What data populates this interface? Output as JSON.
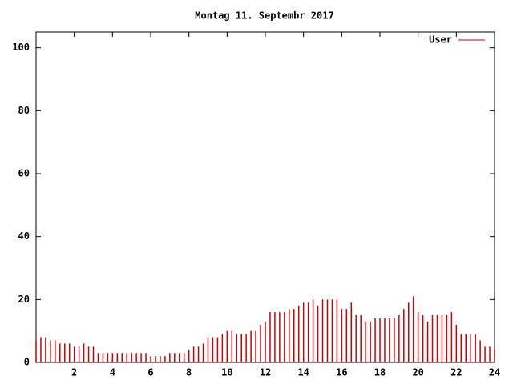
{
  "chart_data": {
    "type": "impulse",
    "title": "Montag 11. Septembr 2017",
    "x": [
      0,
      0.25,
      0.5,
      0.75,
      1,
      1.25,
      1.5,
      1.75,
      2,
      2.25,
      2.5,
      2.75,
      3,
      3.25,
      3.5,
      3.75,
      4,
      4.25,
      4.5,
      4.75,
      5,
      5.25,
      5.5,
      5.75,
      6,
      6.25,
      6.5,
      6.75,
      7,
      7.25,
      7.5,
      7.75,
      8,
      8.25,
      8.5,
      8.75,
      9,
      9.25,
      9.5,
      9.75,
      10,
      10.25,
      10.5,
      10.75,
      11,
      11.25,
      11.5,
      11.75,
      12,
      12.25,
      12.5,
      12.75,
      13,
      13.25,
      13.5,
      13.75,
      14,
      14.25,
      14.5,
      14.75,
      15,
      15.25,
      15.5,
      15.75,
      16,
      16.25,
      16.5,
      16.75,
      17,
      17.25,
      17.5,
      17.75,
      18,
      18.25,
      18.5,
      18.75,
      19,
      19.25,
      19.5,
      19.75,
      20,
      20.25,
      20.5,
      20.75,
      21,
      21.25,
      21.5,
      21.75,
      22,
      22.25,
      22.5,
      22.75,
      23,
      23.25,
      23.5,
      23.75,
      24
    ],
    "series": [
      {
        "name": "User",
        "color": "#cc0000",
        "values": [
          7,
          8,
          8,
          7,
          7,
          6,
          6,
          6,
          5,
          5,
          6,
          5,
          5,
          3,
          3,
          3,
          3,
          3,
          3,
          3,
          3,
          3,
          3,
          3,
          2,
          2,
          2,
          2,
          3,
          3,
          3,
          3,
          4,
          5,
          5,
          6,
          8,
          8,
          8,
          9,
          10,
          10,
          9,
          9,
          9,
          10,
          10,
          12,
          13,
          16,
          16,
          16,
          16,
          17,
          17,
          18,
          19,
          19,
          20,
          18,
          20,
          20,
          20,
          20,
          17,
          17,
          19,
          15,
          15,
          13,
          13,
          14,
          14,
          14,
          14,
          14,
          15,
          17,
          19,
          21,
          16,
          15,
          13,
          15,
          15,
          15,
          15,
          16,
          12,
          9,
          9,
          9,
          9,
          7,
          5,
          5,
          4
        ]
      }
    ],
    "xlim": [
      0,
      24
    ],
    "ylim": [
      0,
      105
    ],
    "xticks": [
      2,
      4,
      6,
      8,
      10,
      12,
      14,
      16,
      18,
      20,
      22,
      24
    ],
    "yticks": [
      0,
      20,
      40,
      60,
      80,
      100
    ],
    "legend": "top-right"
  }
}
